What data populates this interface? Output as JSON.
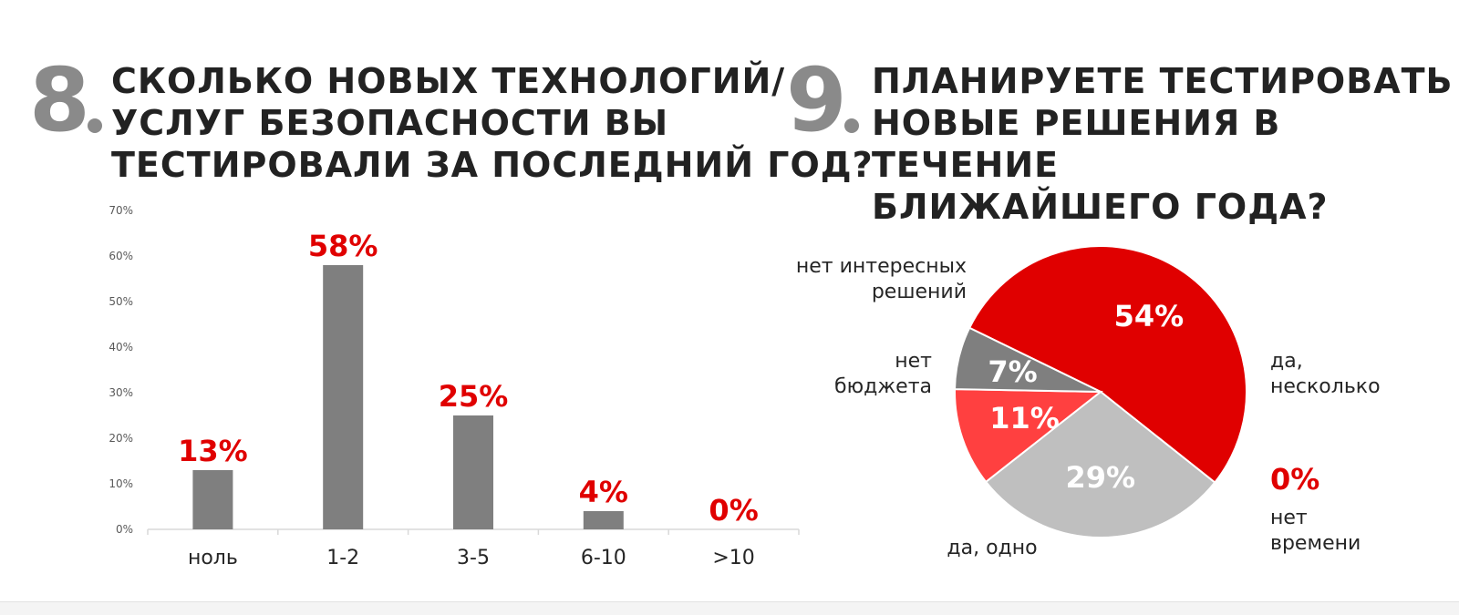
{
  "q8": {
    "number": "8",
    "title": "СКОЛЬКО НОВЫХ ТЕХНОЛОГИЙ/\nУСЛУГ БЕЗОПАСНОСТИ ВЫ\nТЕСТИРОВАЛИ ЗА ПОСЛЕДНИЙ ГОД?"
  },
  "q9": {
    "number": "9",
    "title": "ПЛАНИРУЕТЕ ТЕСТИРОВАТЬ\nНОВЫЕ РЕШЕНИЯ В ТЕЧЕНИЕ\nБЛИЖАЙШЕГО ГОДА?"
  },
  "colors": {
    "accent": "#e00000",
    "bar": "#7f7f7f",
    "axis_text": "#595959"
  },
  "chart_data": [
    {
      "type": "bar",
      "categories": [
        "ноль",
        "1-2",
        "3-5",
        "6-10",
        ">10"
      ],
      "values": [
        13,
        58,
        25,
        4,
        0
      ],
      "data_labels": [
        "13%",
        "58%",
        "25%",
        "4%",
        "0%"
      ],
      "ylim": [
        0,
        70
      ],
      "yticks": [
        "0%",
        "10%",
        "20%",
        "30%",
        "40%",
        "50%",
        "60%",
        "70%"
      ],
      "grid": false
    },
    {
      "type": "pie",
      "slices": [
        {
          "name": "да,\nнесколько",
          "value": 54,
          "label": "54%",
          "color": "#e00000"
        },
        {
          "name": "да,  одно",
          "value": 29,
          "label": "29%",
          "color": "#bfbfbf"
        },
        {
          "name": "нет\nбюджета",
          "value": 11,
          "label": "11%",
          "color": "#ff4040"
        },
        {
          "name": "нет интересных\nрешений",
          "value": 7,
          "label": "7%",
          "color": "#7f7f7f"
        },
        {
          "name": "нет\nвремени",
          "value": 0,
          "label": "0%",
          "color": "#e00000"
        }
      ]
    }
  ]
}
